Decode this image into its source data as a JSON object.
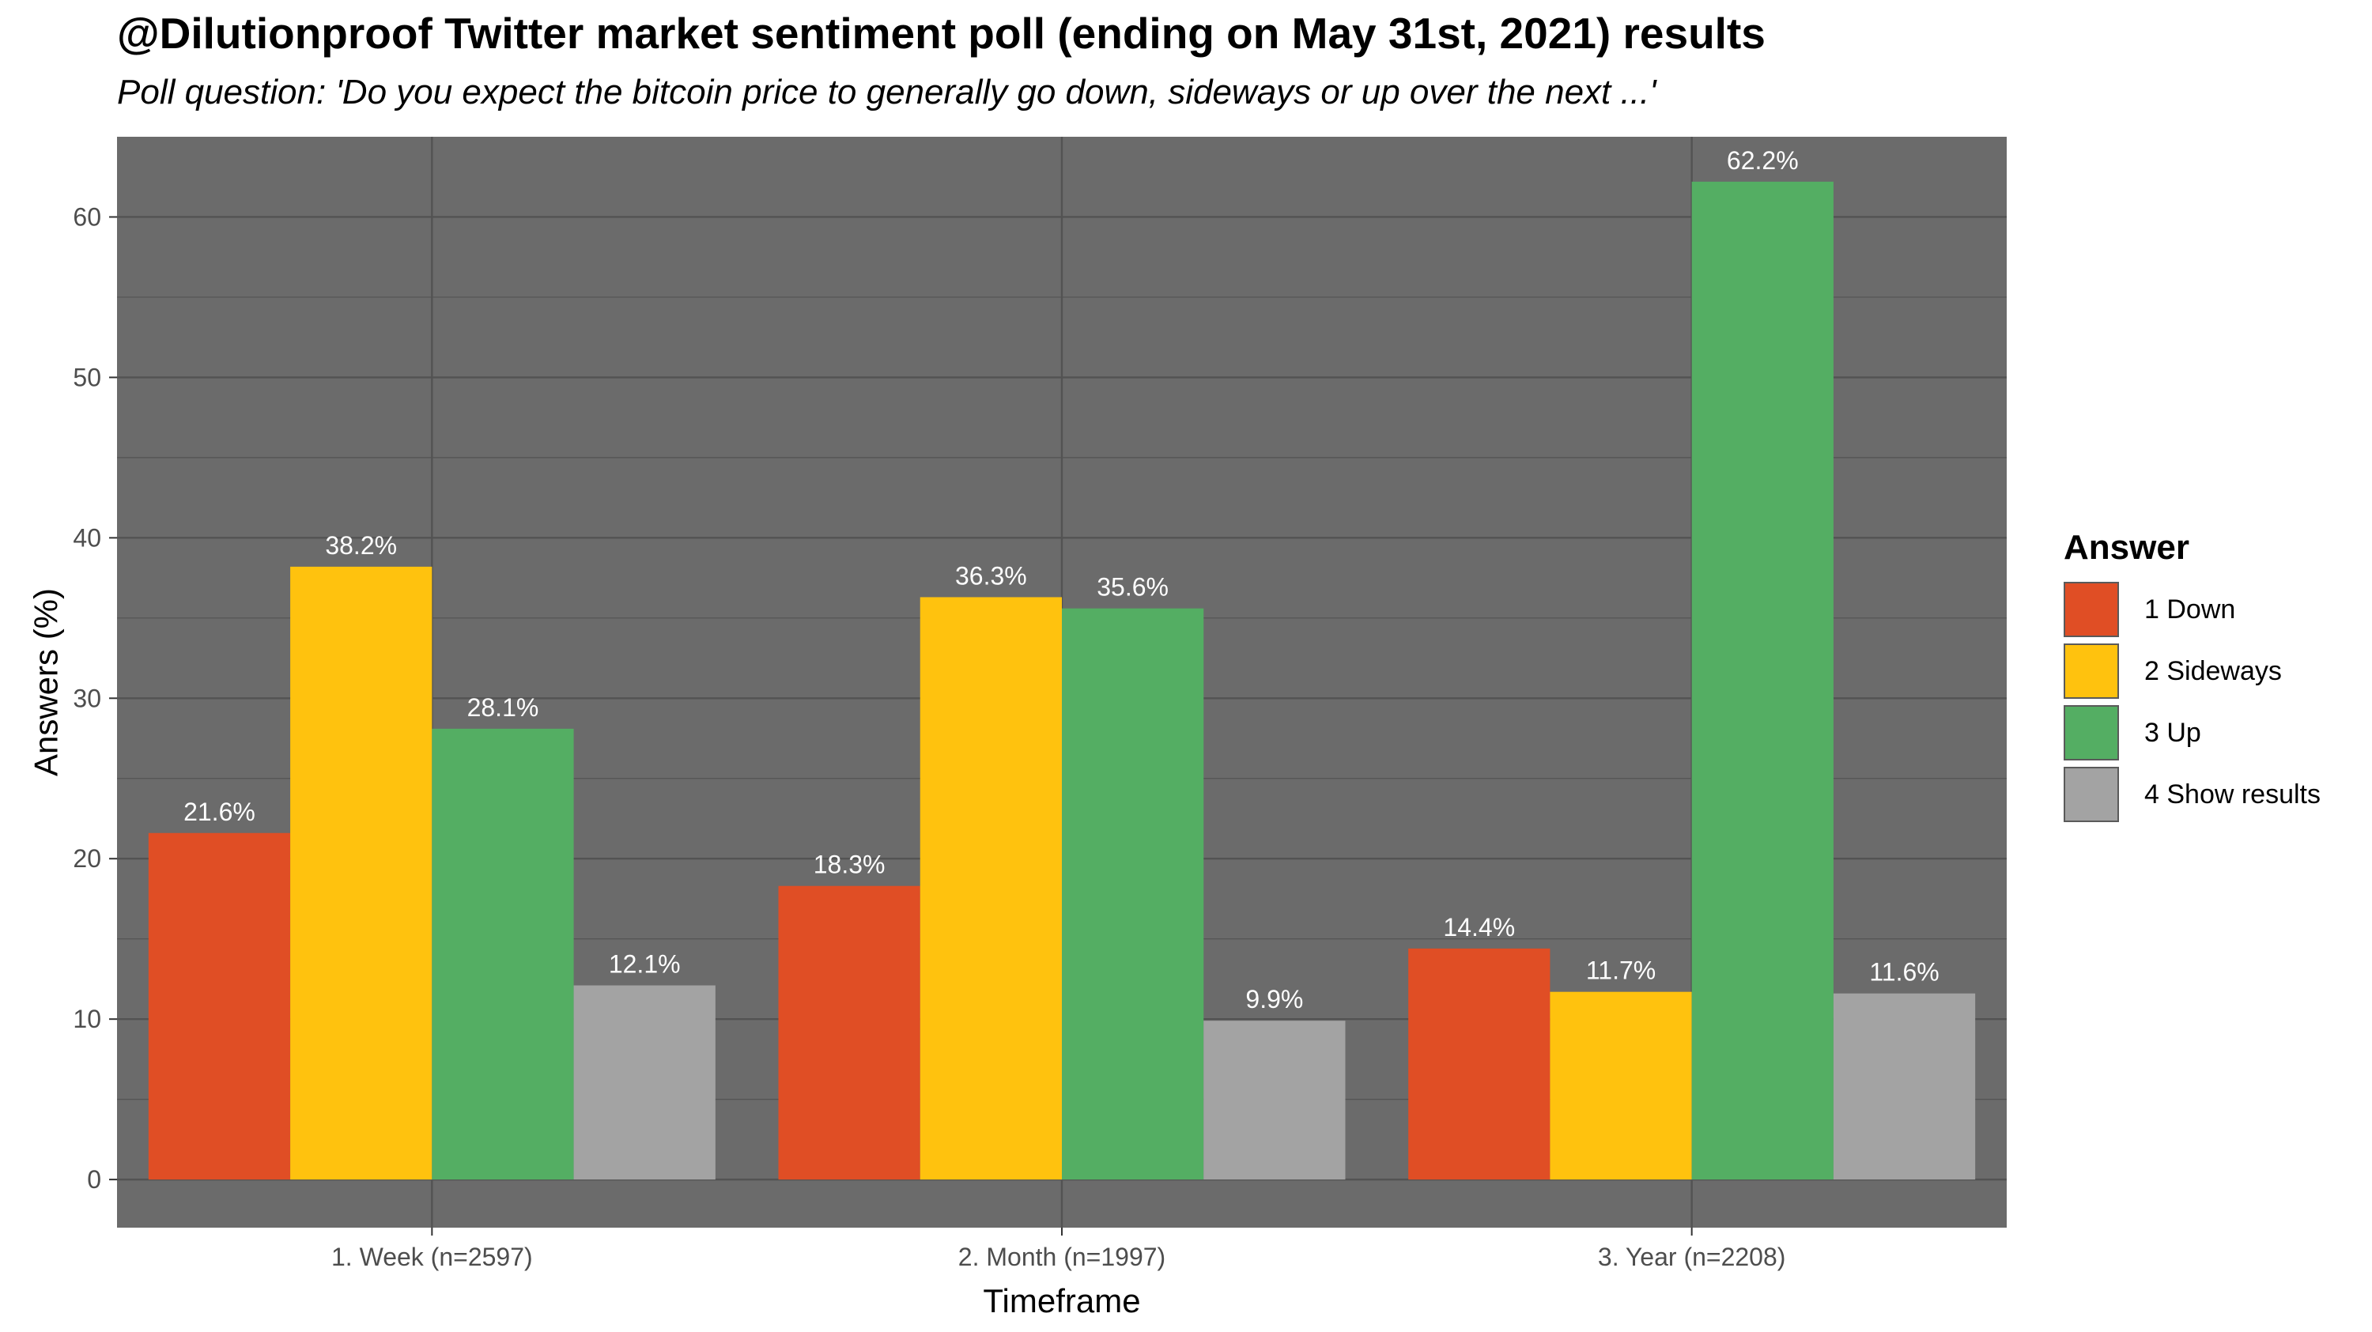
{
  "chart_data": {
    "type": "bar",
    "title": "@Dilutionproof Twitter market sentiment poll (ending on May 31st, 2021) results",
    "subtitle": "Poll question: 'Do you expect the bitcoin price to generally go down, sideways or up over the next ...'",
    "xlabel": "Timeframe",
    "ylabel": "Answers (%)",
    "ylim": [
      -3,
      65
    ],
    "yticks": [
      0,
      10,
      20,
      30,
      40,
      50,
      60
    ],
    "categories": [
      "1. Week (n=2597)",
      "2. Month (n=1997)",
      "3. Year (n=2208)"
    ],
    "series": [
      {
        "name": "1 Down",
        "color": "#e04e25",
        "values": [
          21.6,
          18.3,
          14.4
        ],
        "labels": [
          "21.6%",
          "18.3%",
          "14.4%"
        ]
      },
      {
        "name": "2 Sideways",
        "color": "#ffc20e",
        "values": [
          38.2,
          36.3,
          11.7
        ],
        "labels": [
          "38.2%",
          "36.3%",
          "11.7%"
        ]
      },
      {
        "name": "3 Up",
        "color": "#54ae63",
        "values": [
          28.1,
          35.6,
          62.2
        ],
        "labels": [
          "28.1%",
          "35.6%",
          "62.2%"
        ]
      },
      {
        "name": "4 Show results",
        "color": "#a3a3a3",
        "values": [
          12.1,
          9.9,
          11.6
        ],
        "labels": [
          "12.1%",
          "9.9%",
          "11.6%"
        ]
      }
    ],
    "legend_title": "Answer",
    "legend_position": "right",
    "grid": true,
    "panel_background": "#6b6b6b",
    "grid_color": "#535353"
  }
}
